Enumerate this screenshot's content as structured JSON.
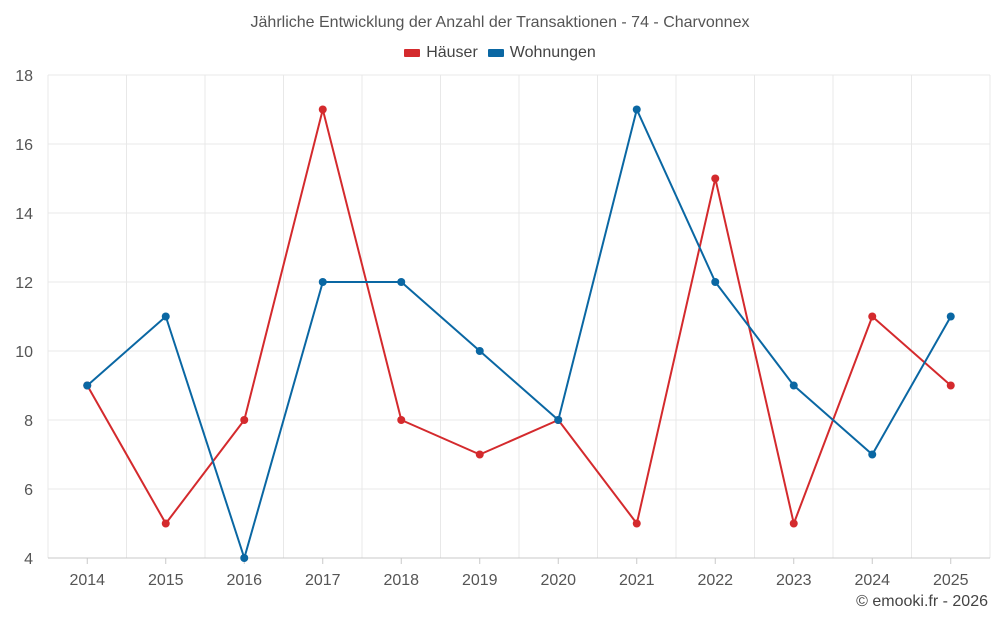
{
  "chart_data": {
    "type": "line",
    "title": "Jährliche Entwicklung der Anzahl der Transaktionen - 74 - Charvonnex",
    "xlabel": "",
    "ylabel": "",
    "x": [
      "2014",
      "2015",
      "2016",
      "2017",
      "2018",
      "2019",
      "2020",
      "2021",
      "2022",
      "2023",
      "2024",
      "2025"
    ],
    "ylim": [
      4,
      18
    ],
    "yticks": [
      4,
      6,
      8,
      10,
      12,
      14,
      16,
      18
    ],
    "grid": true,
    "legend_position": "top-center",
    "series": [
      {
        "name": "Häuser",
        "color": "#d42a2d",
        "values": [
          9,
          5,
          8,
          17,
          8,
          7,
          8,
          5,
          15,
          5,
          11,
          9
        ]
      },
      {
        "name": "Wohnungen",
        "color": "#0a67a3",
        "values": [
          9,
          11,
          4,
          12,
          12,
          10,
          8,
          17,
          12,
          9,
          7,
          11
        ]
      }
    ]
  },
  "footer": {
    "credit": "© emooki.fr - 2026"
  }
}
